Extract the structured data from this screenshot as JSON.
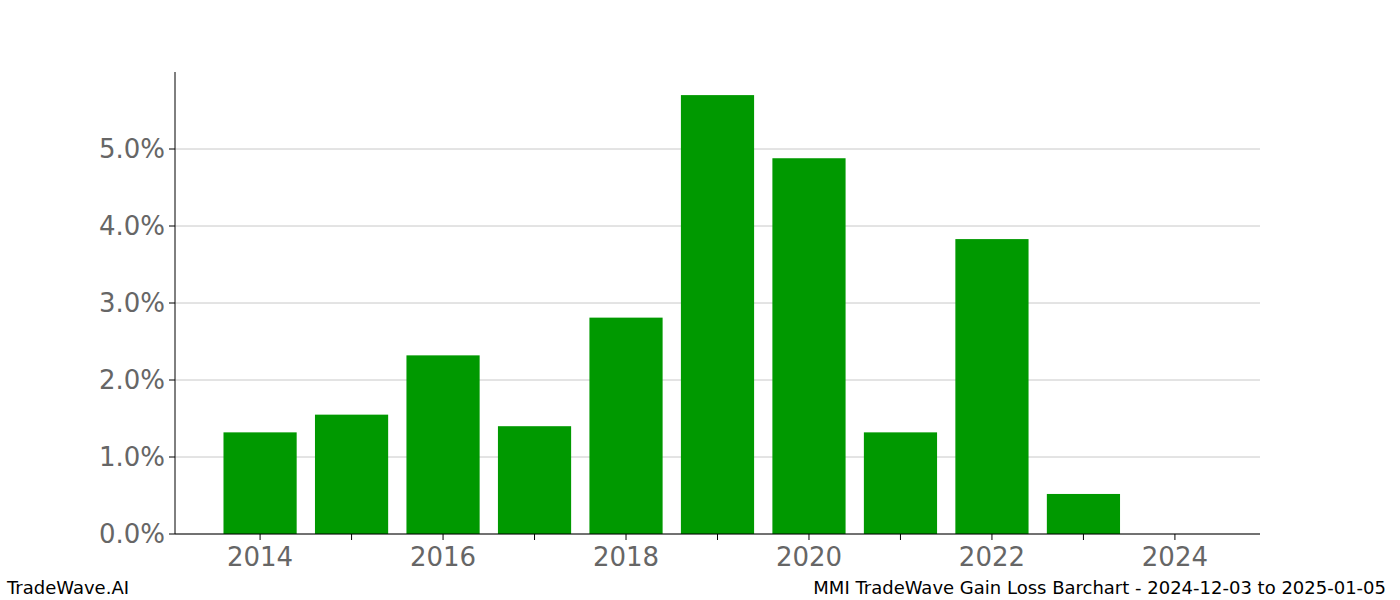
{
  "chart_data": {
    "type": "bar",
    "title": "MMI TradeWave Gain Loss Barchart - 2024-12-03 to 2025-01-05",
    "annotations": [
      "TradeWave.AI"
    ],
    "categories": [
      "2014",
      null,
      "2016",
      null,
      "2018",
      null,
      "2020",
      null,
      "2022",
      null,
      "2024"
    ],
    "values": [
      1.32,
      1.55,
      2.32,
      1.4,
      2.81,
      5.7,
      4.88,
      1.32,
      3.83,
      0.52,
      0
    ],
    "color": "#009900",
    "ylim": [
      0,
      6.0
    ],
    "yticks": [
      {
        "value": 0,
        "label": "0.0%"
      },
      {
        "value": 1,
        "label": "1.0%"
      },
      {
        "value": 2,
        "label": "2.0%"
      },
      {
        "value": 3,
        "label": "3.0%"
      },
      {
        "value": 4,
        "label": "4.0%"
      },
      {
        "value": 5,
        "label": "5.0%"
      }
    ],
    "grid": true
  }
}
